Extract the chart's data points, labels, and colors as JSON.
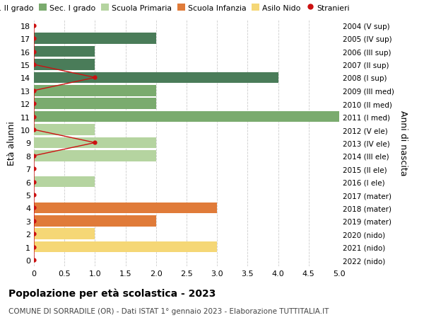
{
  "ages": [
    18,
    17,
    16,
    15,
    14,
    13,
    12,
    11,
    10,
    9,
    8,
    7,
    6,
    5,
    4,
    3,
    2,
    1,
    0
  ],
  "right_labels": [
    "2004 (V sup)",
    "2005 (IV sup)",
    "2006 (III sup)",
    "2007 (II sup)",
    "2008 (I sup)",
    "2009 (III med)",
    "2010 (II med)",
    "2011 (I med)",
    "2012 (V ele)",
    "2013 (IV ele)",
    "2014 (III ele)",
    "2015 (II ele)",
    "2016 (I ele)",
    "2017 (mater)",
    "2018 (mater)",
    "2019 (mater)",
    "2020 (nido)",
    "2021 (nido)",
    "2022 (nido)"
  ],
  "bar_values": [
    0,
    2,
    1,
    1,
    4,
    2,
    2,
    5,
    1,
    2,
    2,
    0,
    1,
    0,
    3,
    2,
    1,
    3,
    0
  ],
  "bar_colors": [
    "#4a7c59",
    "#4a7c59",
    "#4a7c59",
    "#4a7c59",
    "#4a7c59",
    "#7aab6e",
    "#7aab6e",
    "#7aab6e",
    "#b5d4a0",
    "#b5d4a0",
    "#b5d4a0",
    "#b5d4a0",
    "#b5d4a0",
    "#e07b39",
    "#e07b39",
    "#e07b39",
    "#f5d776",
    "#f5d776",
    "#f5d776"
  ],
  "stranieri_values": [
    0,
    0,
    0,
    0,
    1,
    0,
    0,
    0,
    0,
    1,
    0,
    0,
    0,
    0,
    0,
    0,
    0,
    0,
    0
  ],
  "legend_labels": [
    "Sec. II grado",
    "Sec. I grado",
    "Scuola Primaria",
    "Scuola Infanzia",
    "Asilo Nido",
    "Stranieri"
  ],
  "legend_colors": [
    "#4a7c59",
    "#7aab6e",
    "#b5d4a0",
    "#e07b39",
    "#f5d776",
    "#cc1111"
  ],
  "title": "Popolazione per età scolastica - 2023",
  "subtitle": "COMUNE DI SORRADILE (OR) - Dati ISTAT 1° gennaio 2023 - Elaborazione TUTTITALIA.IT",
  "ylabel_left": "Età alunni",
  "ylabel_right": "Anni di nascita",
  "xlim": [
    0,
    5.0
  ],
  "xticks": [
    0,
    0.5,
    1.0,
    1.5,
    2.0,
    2.5,
    3.0,
    3.5,
    4.0,
    4.5,
    5.0
  ],
  "xtick_labels": [
    "0",
    "0.5",
    "1.0",
    "1.5",
    "2.0",
    "2.5",
    "3.0",
    "3.5",
    "4.0",
    "4.5",
    "5.0"
  ],
  "bg_color": "#ffffff",
  "grid_color": "#cccccc"
}
